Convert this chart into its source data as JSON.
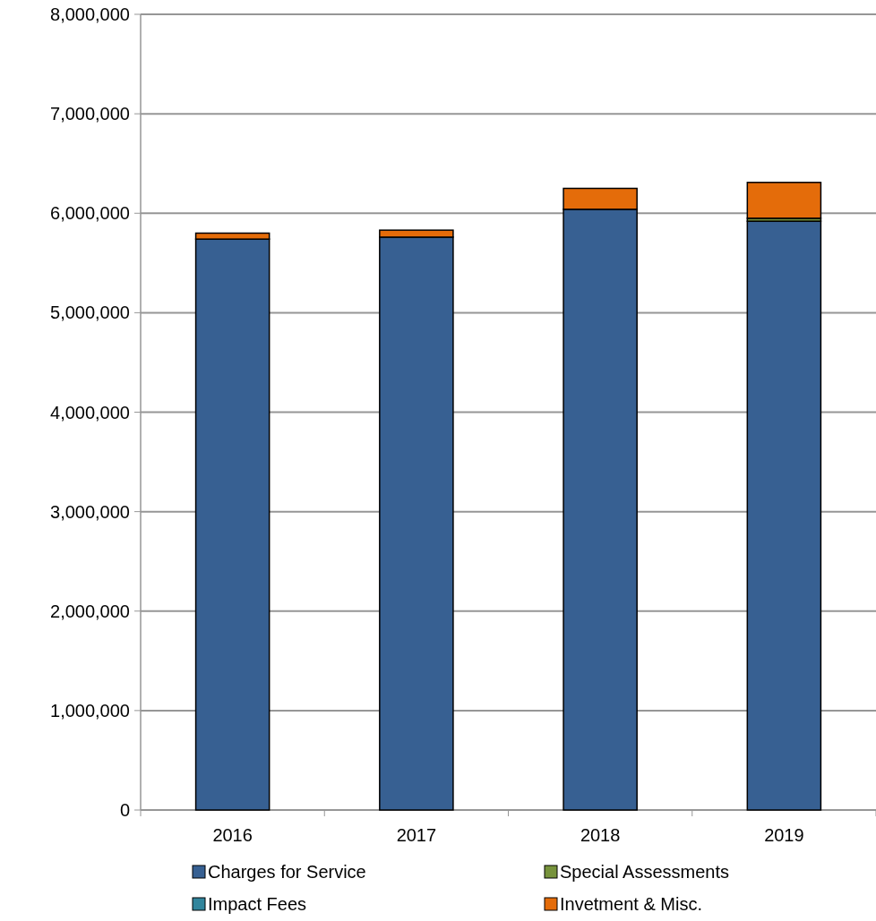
{
  "chart_data": {
    "type": "bar",
    "stacked": true,
    "categories": [
      "2016",
      "2017",
      "2018",
      "2019"
    ],
    "series": [
      {
        "name": "Charges for Service",
        "color": "#376092",
        "values": [
          5740000,
          5760000,
          6040000,
          5920000
        ]
      },
      {
        "name": "Special Assessments",
        "color": "#77933c",
        "values": [
          null,
          null,
          null,
          30000
        ]
      },
      {
        "name": "Impact Fees",
        "color": "#31859c",
        "values": [
          null,
          null,
          null,
          null
        ]
      },
      {
        "name": "Invetment & Misc.",
        "color": "#e46c0a",
        "values": [
          60000,
          70000,
          210000,
          360000
        ]
      }
    ],
    "ylim": [
      0,
      8000000
    ],
    "yticks": [
      {
        "value": 0,
        "label": "0"
      },
      {
        "value": 1000000,
        "label": "1,000,000"
      },
      {
        "value": 2000000,
        "label": "2,000,000"
      },
      {
        "value": 3000000,
        "label": "3,000,000"
      },
      {
        "value": 4000000,
        "label": "4,000,000"
      },
      {
        "value": 5000000,
        "label": "5,000,000"
      },
      {
        "value": 6000000,
        "label": "6,000,000"
      },
      {
        "value": 7000000,
        "label": "7,000,000"
      },
      {
        "value": 8000000,
        "label": "8,000,000"
      }
    ],
    "grid": "y",
    "legend": "bottom"
  }
}
